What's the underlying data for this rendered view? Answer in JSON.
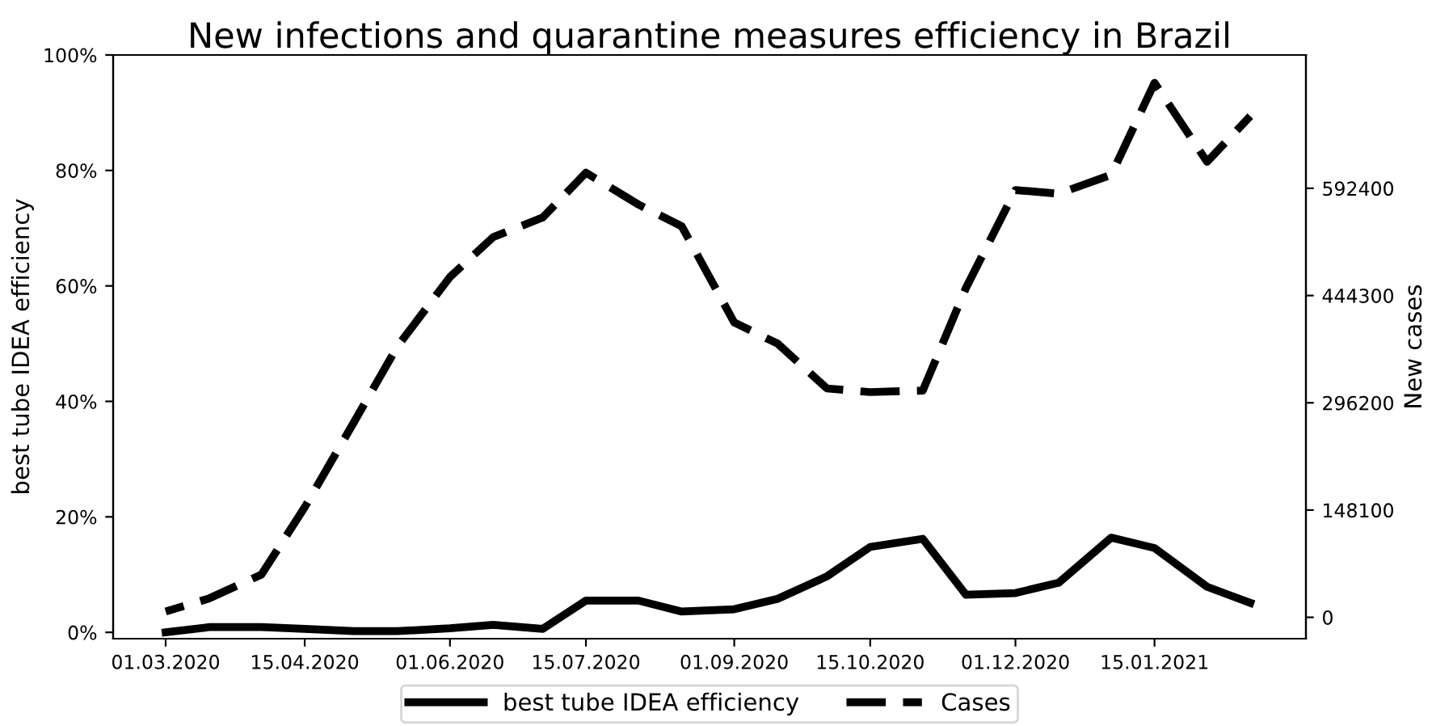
{
  "chart_data": {
    "type": "line",
    "title": "New infections and quarantine measures efficiency in Brazil",
    "ylabel": "best tube IDEA efficiency",
    "y2label": "New cases",
    "x": [
      "2020-03-01",
      "2020-03-15",
      "2020-04-01",
      "2020-04-15",
      "2020-05-01",
      "2020-05-15",
      "2020-06-01",
      "2020-06-15",
      "2020-07-01",
      "2020-07-15",
      "2020-08-01",
      "2020-08-15",
      "2020-09-01",
      "2020-09-15",
      "2020-10-01",
      "2020-10-15",
      "2020-11-01",
      "2020-11-15",
      "2020-12-01",
      "2020-12-15",
      "2021-01-01",
      "2021-01-15",
      "2021-02-01",
      "2021-02-15"
    ],
    "series": [
      {
        "name": "best tube IDEA efficiency",
        "color": "#000000",
        "line_style": "solid",
        "axis": "y",
        "values": [
          0,
          0.9,
          0.9,
          0.6,
          0.2,
          0.2,
          0.7,
          1.3,
          0.6,
          5.5,
          5.5,
          3.6,
          4.0,
          5.8,
          9.7,
          14.8,
          16.2,
          6.5,
          6.8,
          8.6,
          16.4,
          14.6,
          7.9,
          5.1
        ]
      },
      {
        "name": "Cases",
        "color": "#000000",
        "line_style": "dashed",
        "axis": "y2",
        "values": [
          8000,
          26000,
          59000,
          152000,
          270000,
          374000,
          470000,
          525000,
          552000,
          614000,
          570000,
          540000,
          407000,
          378000,
          316000,
          311000,
          313000,
          455000,
          590000,
          585000,
          611000,
          738000,
          629000,
          692000
        ]
      }
    ],
    "xlim": [
      "2020-02-13",
      "2021-03-05"
    ],
    "xticks": [
      {
        "value": "2020-03-01",
        "label": "01.03.2020"
      },
      {
        "value": "2020-04-15",
        "label": "15.04.2020"
      },
      {
        "value": "2020-06-01",
        "label": "01.06.2020"
      },
      {
        "value": "2020-07-15",
        "label": "15.07.2020"
      },
      {
        "value": "2020-09-01",
        "label": "01.09.2020"
      },
      {
        "value": "2020-10-15",
        "label": "15.10.2020"
      },
      {
        "value": "2020-12-01",
        "label": "01.12.2020"
      },
      {
        "value": "2021-01-15",
        "label": "15.01.2021"
      }
    ],
    "ylim": [
      -1.1,
      100
    ],
    "yticks": [
      {
        "value": 0,
        "label": "0%"
      },
      {
        "value": 20,
        "label": "20%"
      },
      {
        "value": 40,
        "label": "40%"
      },
      {
        "value": 60,
        "label": "60%"
      },
      {
        "value": 80,
        "label": "80%"
      },
      {
        "value": 100,
        "label": "100%"
      }
    ],
    "y2lim": [
      -29500,
      776500
    ],
    "y2ticks": [
      0,
      148100,
      296200,
      444300,
      592400
    ],
    "grid": false,
    "legend": "bottom",
    "marker": "none"
  }
}
